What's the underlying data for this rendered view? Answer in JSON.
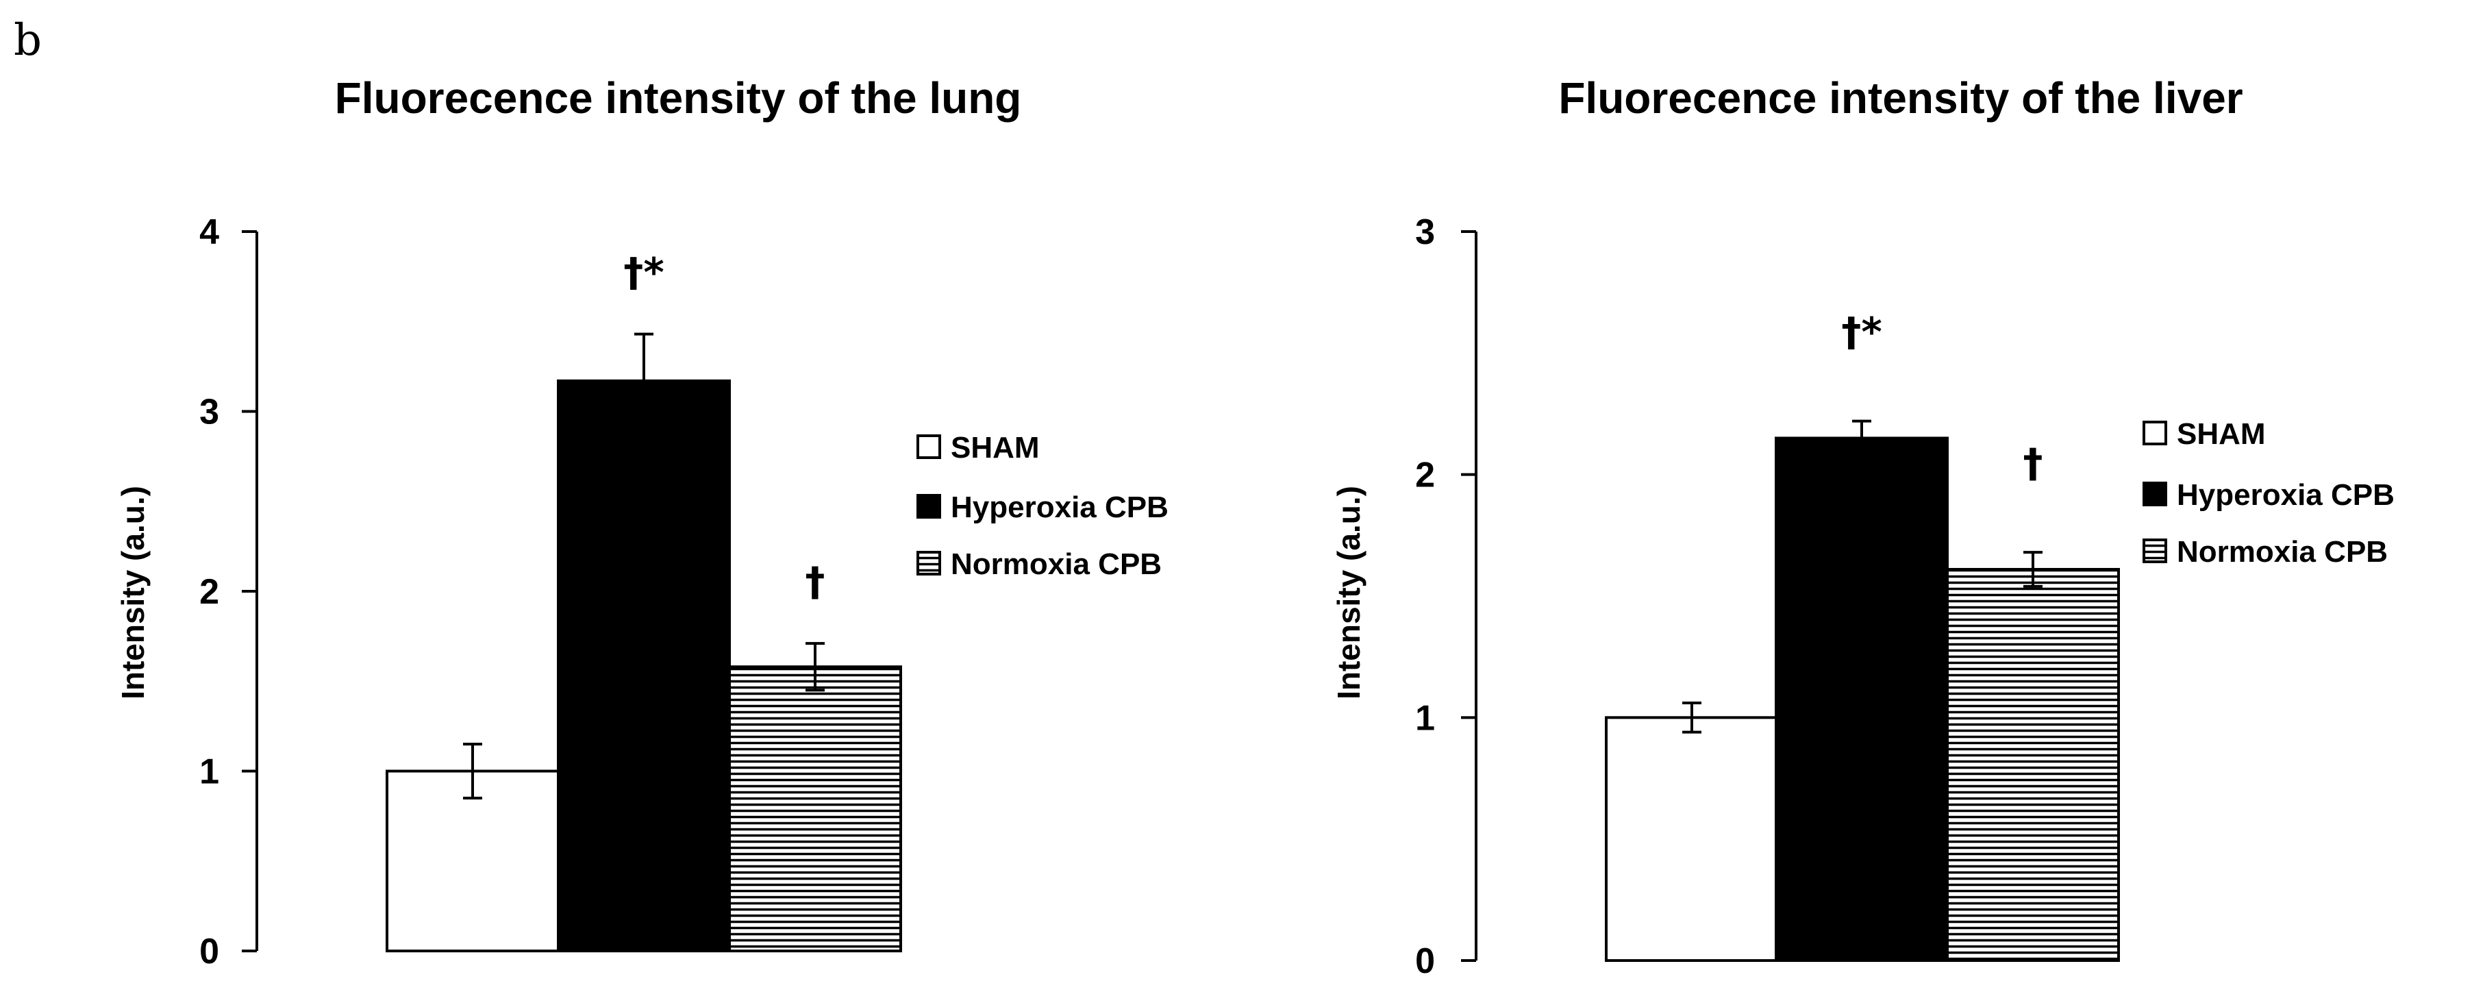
{
  "panel_label": "b",
  "colors": {
    "SHAM": "#ffffff",
    "Hyperoxia CPB": "#000000",
    "Normoxia CPB": "hatched-horizontal"
  },
  "chart_data": [
    {
      "type": "bar",
      "title": "Fluorecence intensity of the lung",
      "xlabel": "",
      "ylabel": "Intensity (a.u.)",
      "ylim": [
        0,
        4
      ],
      "yticks": [
        0,
        1,
        2,
        3,
        4
      ],
      "ytick_labels": [
        "0",
        "1",
        "2",
        "3",
        "4"
      ],
      "grid": false,
      "legend_placement": "right",
      "categories": [
        "SHAM",
        "Hyperoxia CPB",
        "Normoxia CPB"
      ],
      "series": [
        {
          "name": "SHAM",
          "value": 1.0,
          "error": 0.15,
          "annotation": ""
        },
        {
          "name": "Hyperoxia CPB",
          "value": 3.17,
          "error": 0.26,
          "annotation": "†*"
        },
        {
          "name": "Normoxia CPB",
          "value": 1.58,
          "error": 0.13,
          "annotation": "†"
        }
      ]
    },
    {
      "type": "bar",
      "title": "Fluorecence intensity of the liver",
      "xlabel": "",
      "ylabel": "Intensity (a.u.)",
      "ylim": [
        0,
        3
      ],
      "yticks": [
        0,
        1,
        2,
        3
      ],
      "ytick_labels": [
        "0",
        "1",
        "2",
        "3"
      ],
      "grid": false,
      "legend_placement": "right",
      "categories": [
        "SHAM",
        "Hyperoxia CPB",
        "Normoxia CPB"
      ],
      "series": [
        {
          "name": "SHAM",
          "value": 1.0,
          "error": 0.06,
          "annotation": ""
        },
        {
          "name": "Hyperoxia CPB",
          "value": 2.15,
          "error": 0.07,
          "annotation": "†*"
        },
        {
          "name": "Normoxia CPB",
          "value": 1.61,
          "error": 0.07,
          "annotation": "†"
        }
      ]
    }
  ]
}
